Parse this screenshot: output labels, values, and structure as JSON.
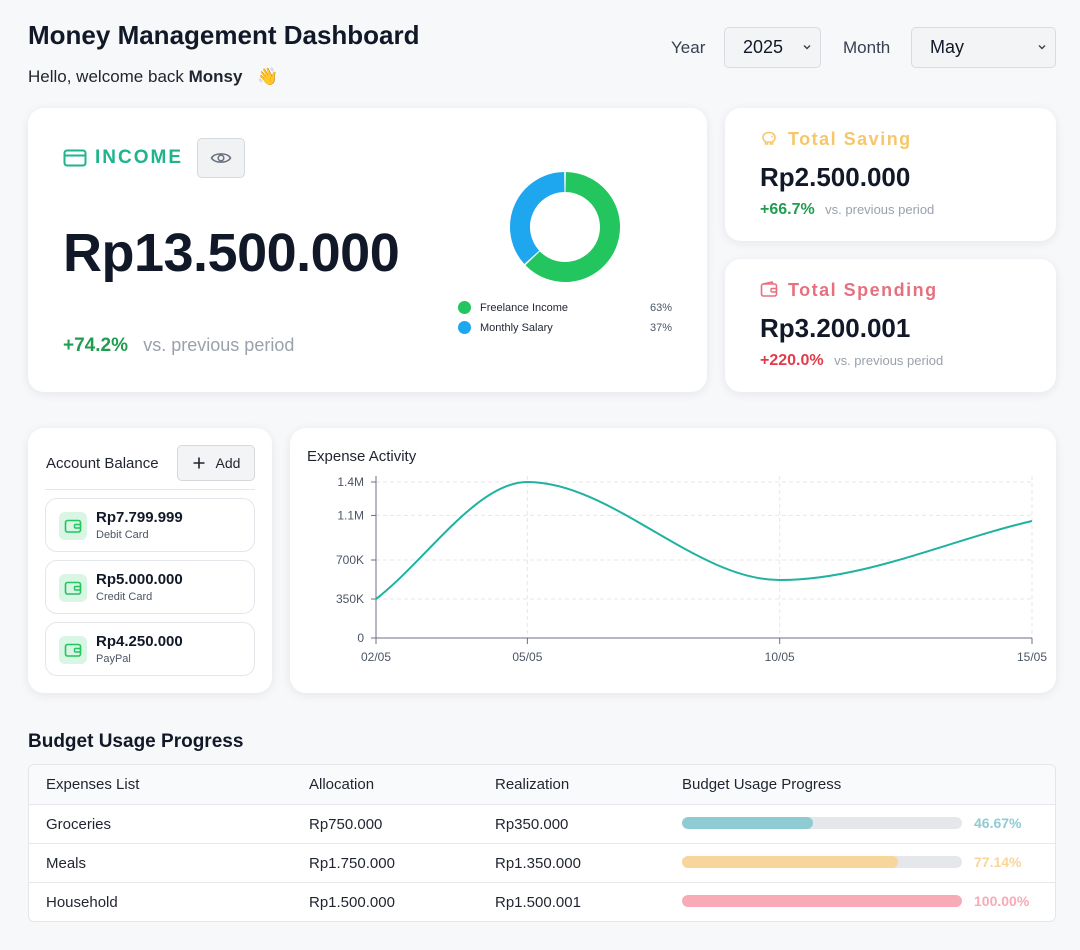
{
  "header": {
    "title": "Money Management Dashboard",
    "greeting_prefix": "Hello, welcome back ",
    "user_name": "Monsy",
    "wave_emoji": "👋",
    "year_label": "Year",
    "year_value": "2025",
    "month_label": "Month",
    "month_value": "May"
  },
  "income": {
    "title": "INCOME",
    "amount": "Rp13.500.000",
    "change": "+74.2%",
    "vs_text": "vs. previous period",
    "breakdown": [
      {
        "name": "Freelance Income",
        "pct_label": "63%",
        "value": 63,
        "color": "#22c55e"
      },
      {
        "name": "Monthly Salary",
        "pct_label": "37%",
        "value": 37,
        "color": "#1ea7ef"
      }
    ]
  },
  "saving": {
    "title": "Total Saving",
    "amount": "Rp2.500.000",
    "change": "+66.7%",
    "vs_text": "vs. previous period",
    "color": "#f7c66a"
  },
  "spending": {
    "title": "Total Spending",
    "amount": "Rp3.200.001",
    "change": "+220.0%",
    "vs_text": "vs. previous period",
    "color": "#e8707e"
  },
  "accounts": {
    "title": "Account Balance",
    "add_label": "Add",
    "items": [
      {
        "amount": "Rp7.799.999",
        "type": "Debit Card"
      },
      {
        "amount": "Rp5.000.000",
        "type": "Credit Card"
      },
      {
        "amount": "Rp4.250.000",
        "type": "PayPal"
      }
    ]
  },
  "chart_data": {
    "type": "line",
    "title": "Expense Activity",
    "xlabel": "",
    "ylabel": "",
    "x": [
      "02/05",
      "05/05",
      "10/05",
      "15/05"
    ],
    "x_numeric": [
      2,
      5,
      10,
      15
    ],
    "xlim": [
      2,
      15
    ],
    "ylim": [
      0,
      1400000
    ],
    "y_ticks": [
      0,
      350000,
      700000,
      1100000,
      1400000
    ],
    "y_tick_labels": [
      "0",
      "350K",
      "700K",
      "1.1M",
      "1.4M"
    ],
    "grid": true,
    "color": "#20b2a0",
    "series": [
      {
        "values": [
          350000,
          1400000,
          520000,
          1050000
        ]
      }
    ]
  },
  "budget": {
    "title": "Budget Usage Progress",
    "columns": [
      "Expenses List",
      "Allocation",
      "Realization",
      "Budget Usage Progress"
    ],
    "rows": [
      {
        "name": "Groceries",
        "allocation": "Rp750.000",
        "realization": "Rp350.000",
        "pct_label": "46.67%",
        "fraction": 0.4667,
        "color": "#8fcbd3"
      },
      {
        "name": "Meals",
        "allocation": "Rp1.750.000",
        "realization": "Rp1.350.000",
        "pct_label": "77.14%",
        "fraction": 0.7714,
        "color": "#f8d59a"
      },
      {
        "name": "Household",
        "allocation": "Rp1.500.000",
        "realization": "Rp1.500.001",
        "pct_label": "100.00%",
        "fraction": 1.0,
        "color": "#f8aab6"
      }
    ]
  }
}
